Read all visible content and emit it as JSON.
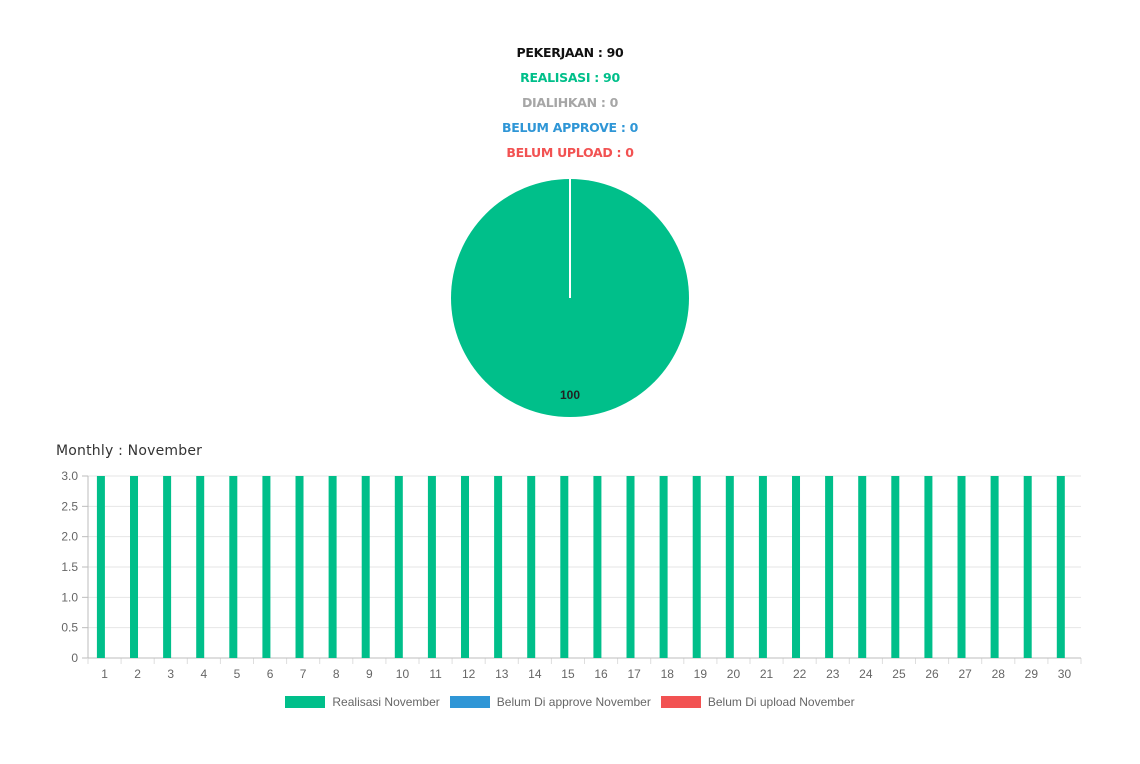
{
  "summary": {
    "pekerjaan": "PEKERJAAN : 90",
    "realisasi": "REALISASI : 90",
    "dialihkan": "DIALIHKAN : 0",
    "belum_approve": "BELUM APPROVE : 0",
    "belum_upload": "BELUM UPLOAD : 0"
  },
  "colors": {
    "realisasi": "#00bf8a",
    "dialihkan": "#a6a6a6",
    "belum_approve": "#2f96d6",
    "belum_upload": "#f25252"
  },
  "monthly_title": "Monthly : November",
  "chart_data": [
    {
      "type": "pie",
      "slices": [
        {
          "label": "REALISASI",
          "value": 100,
          "color": "#00bf8a",
          "data_label": "100"
        }
      ]
    },
    {
      "type": "bar",
      "categories": [
        "1",
        "2",
        "3",
        "4",
        "5",
        "6",
        "7",
        "8",
        "9",
        "10",
        "11",
        "12",
        "13",
        "14",
        "15",
        "16",
        "17",
        "18",
        "19",
        "20",
        "21",
        "22",
        "23",
        "24",
        "25",
        "26",
        "27",
        "28",
        "29",
        "30"
      ],
      "series": [
        {
          "name": "Realisasi November",
          "color": "#00bf8a",
          "values": [
            3,
            3,
            3,
            3,
            3,
            3,
            3,
            3,
            3,
            3,
            3,
            3,
            3,
            3,
            3,
            3,
            3,
            3,
            3,
            3,
            3,
            3,
            3,
            3,
            3,
            3,
            3,
            3,
            3,
            3
          ]
        },
        {
          "name": "Belum Di approve November",
          "color": "#2f96d6",
          "values": [
            0,
            0,
            0,
            0,
            0,
            0,
            0,
            0,
            0,
            0,
            0,
            0,
            0,
            0,
            0,
            0,
            0,
            0,
            0,
            0,
            0,
            0,
            0,
            0,
            0,
            0,
            0,
            0,
            0,
            0
          ]
        },
        {
          "name": "Belum Di upload November",
          "color": "#f25252",
          "values": [
            0,
            0,
            0,
            0,
            0,
            0,
            0,
            0,
            0,
            0,
            0,
            0,
            0,
            0,
            0,
            0,
            0,
            0,
            0,
            0,
            0,
            0,
            0,
            0,
            0,
            0,
            0,
            0,
            0,
            0
          ]
        }
      ],
      "y_ticks": [
        "3.0",
        "2.5",
        "2.0",
        "1.5",
        "1.0",
        "0.5",
        "0"
      ],
      "ylim": [
        0,
        3
      ],
      "grid": true,
      "legend": "bottom"
    }
  ]
}
